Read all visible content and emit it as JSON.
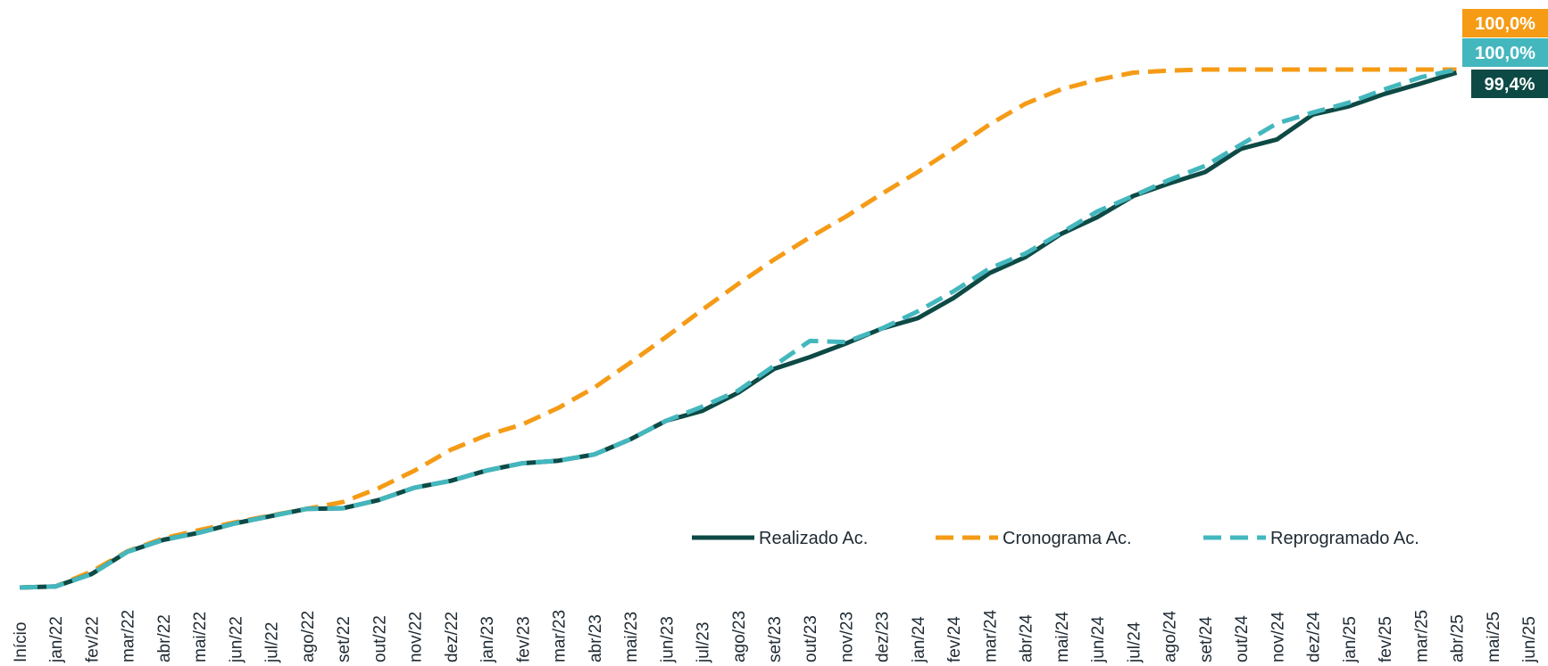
{
  "chart_data": {
    "type": "line",
    "title": "",
    "xlabel": "",
    "ylabel": "",
    "ylim": [
      0,
      100
    ],
    "grid": false,
    "legend_position": "bottom-right",
    "categories": [
      "Início",
      "jan/22",
      "fev/22",
      "mar/22",
      "abr/22",
      "mai/22",
      "jun/22",
      "jul/22",
      "ago/22",
      "set/22",
      "out/22",
      "nov/22",
      "dez/22",
      "jan/23",
      "fev/23",
      "mar/23",
      "abr/23",
      "mai/23",
      "jun/23",
      "jul/23",
      "ago/23",
      "set/23",
      "out/23",
      "nov/23",
      "dez/23",
      "jan/24",
      "fev/24",
      "mar/24",
      "abr/24",
      "mai/24",
      "jun/24",
      "jul/24",
      "ago/24",
      "set/24",
      "out/24",
      "nov/24",
      "dez/24",
      "jan/25",
      "fev/25",
      "mar/25",
      "abr/25",
      "mai/25",
      "jun/25"
    ],
    "series": [
      {
        "name": "Realizado Ac.",
        "color": "#0e4a45",
        "dash": "solid",
        "values": [
          0.0,
          0.2,
          2.6,
          6.9,
          9.2,
          10.6,
          12.4,
          13.8,
          15.2,
          15.3,
          16.9,
          19.3,
          20.6,
          22.6,
          24.0,
          24.5,
          25.7,
          28.6,
          32.2,
          34.1,
          37.6,
          42.2,
          44.5,
          47.1,
          50.0,
          52.0,
          55.9,
          60.7,
          63.8,
          68.3,
          71.5,
          75.6,
          78.0,
          80.2,
          84.7,
          86.5,
          91.3,
          92.9,
          95.3,
          97.3,
          99.4,
          null,
          null
        ]
      },
      {
        "name": "Cronograma Ac.",
        "color": "#f59b16",
        "dash": "dashed",
        "values": [
          0.0,
          0.2,
          3.1,
          7.0,
          9.5,
          11.1,
          12.6,
          13.9,
          15.2,
          16.5,
          19.2,
          22.6,
          26.6,
          29.4,
          31.5,
          34.7,
          38.6,
          43.4,
          48.4,
          53.6,
          58.6,
          63.3,
          67.6,
          71.6,
          76.0,
          80.2,
          84.7,
          89.4,
          93.4,
          96.2,
          98.0,
          99.4,
          99.8,
          100.0,
          100.0,
          100.0,
          100.0,
          100.0,
          100.0,
          100.0,
          100.0,
          null,
          null
        ]
      },
      {
        "name": "Reprogramado  Ac.",
        "color": "#44b7be",
        "dash": "dashed",
        "values": [
          0.0,
          0.2,
          2.6,
          6.9,
          9.2,
          10.6,
          12.4,
          13.8,
          15.2,
          15.3,
          16.9,
          19.3,
          20.6,
          22.6,
          24.0,
          24.5,
          25.7,
          28.6,
          32.2,
          34.9,
          38.0,
          42.8,
          47.6,
          47.4,
          50.0,
          53.3,
          57.2,
          61.6,
          64.5,
          68.5,
          72.6,
          75.6,
          78.7,
          81.4,
          85.5,
          89.6,
          91.7,
          93.6,
          96.2,
          98.5,
          100.0,
          null,
          null
        ]
      }
    ],
    "end_labels": [
      {
        "text": "100,0%",
        "color": "#f59b16"
      },
      {
        "text": "100,0%",
        "color": "#44b7be"
      },
      {
        "text": "99,4%",
        "color": "#0e4a45"
      }
    ]
  }
}
